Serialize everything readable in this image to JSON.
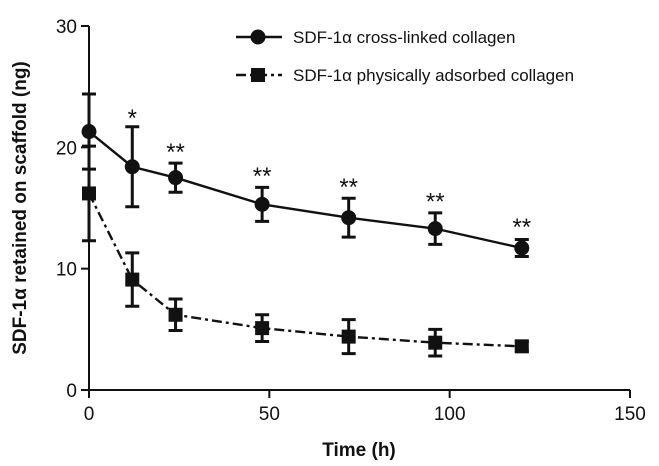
{
  "chart_data": {
    "type": "line",
    "xlabel": "Time (h)",
    "ylabel": "SDF-1α retained on scaffold (ng)",
    "xlim": [
      0,
      150
    ],
    "ylim": [
      0,
      30
    ],
    "x_ticks": [
      0,
      50,
      100,
      150
    ],
    "y_ticks": [
      0,
      10,
      20,
      30
    ],
    "grid": false,
    "legend_position": "top-right",
    "x": [
      0,
      12,
      24,
      48,
      72,
      96,
      120
    ],
    "series": [
      {
        "name": "SDF-1α cross-linked collagen",
        "marker": "circle",
        "linestyle": "solid",
        "values": [
          21.3,
          18.4,
          17.5,
          15.3,
          14.2,
          13.3,
          11.7
        ],
        "error": [
          3.1,
          3.3,
          1.2,
          1.4,
          1.6,
          1.3,
          0.7
        ]
      },
      {
        "name": "SDF-1α physically adsorbed collagen",
        "marker": "square",
        "linestyle": "dash-dot",
        "values": [
          16.2,
          9.1,
          6.2,
          5.1,
          4.4,
          3.9,
          3.6
        ],
        "error": [
          3.9,
          2.2,
          1.3,
          1.1,
          1.4,
          1.1,
          0.4
        ]
      }
    ],
    "annotations": [
      {
        "x": 12,
        "y": 22.6,
        "text": "*"
      },
      {
        "x": 24,
        "y": 19.8,
        "text": "**"
      },
      {
        "x": 48,
        "y": 17.8,
        "text": "**"
      },
      {
        "x": 72,
        "y": 16.9,
        "text": "**"
      },
      {
        "x": 96,
        "y": 15.7,
        "text": "**"
      },
      {
        "x": 120,
        "y": 13.6,
        "text": "**"
      }
    ]
  }
}
